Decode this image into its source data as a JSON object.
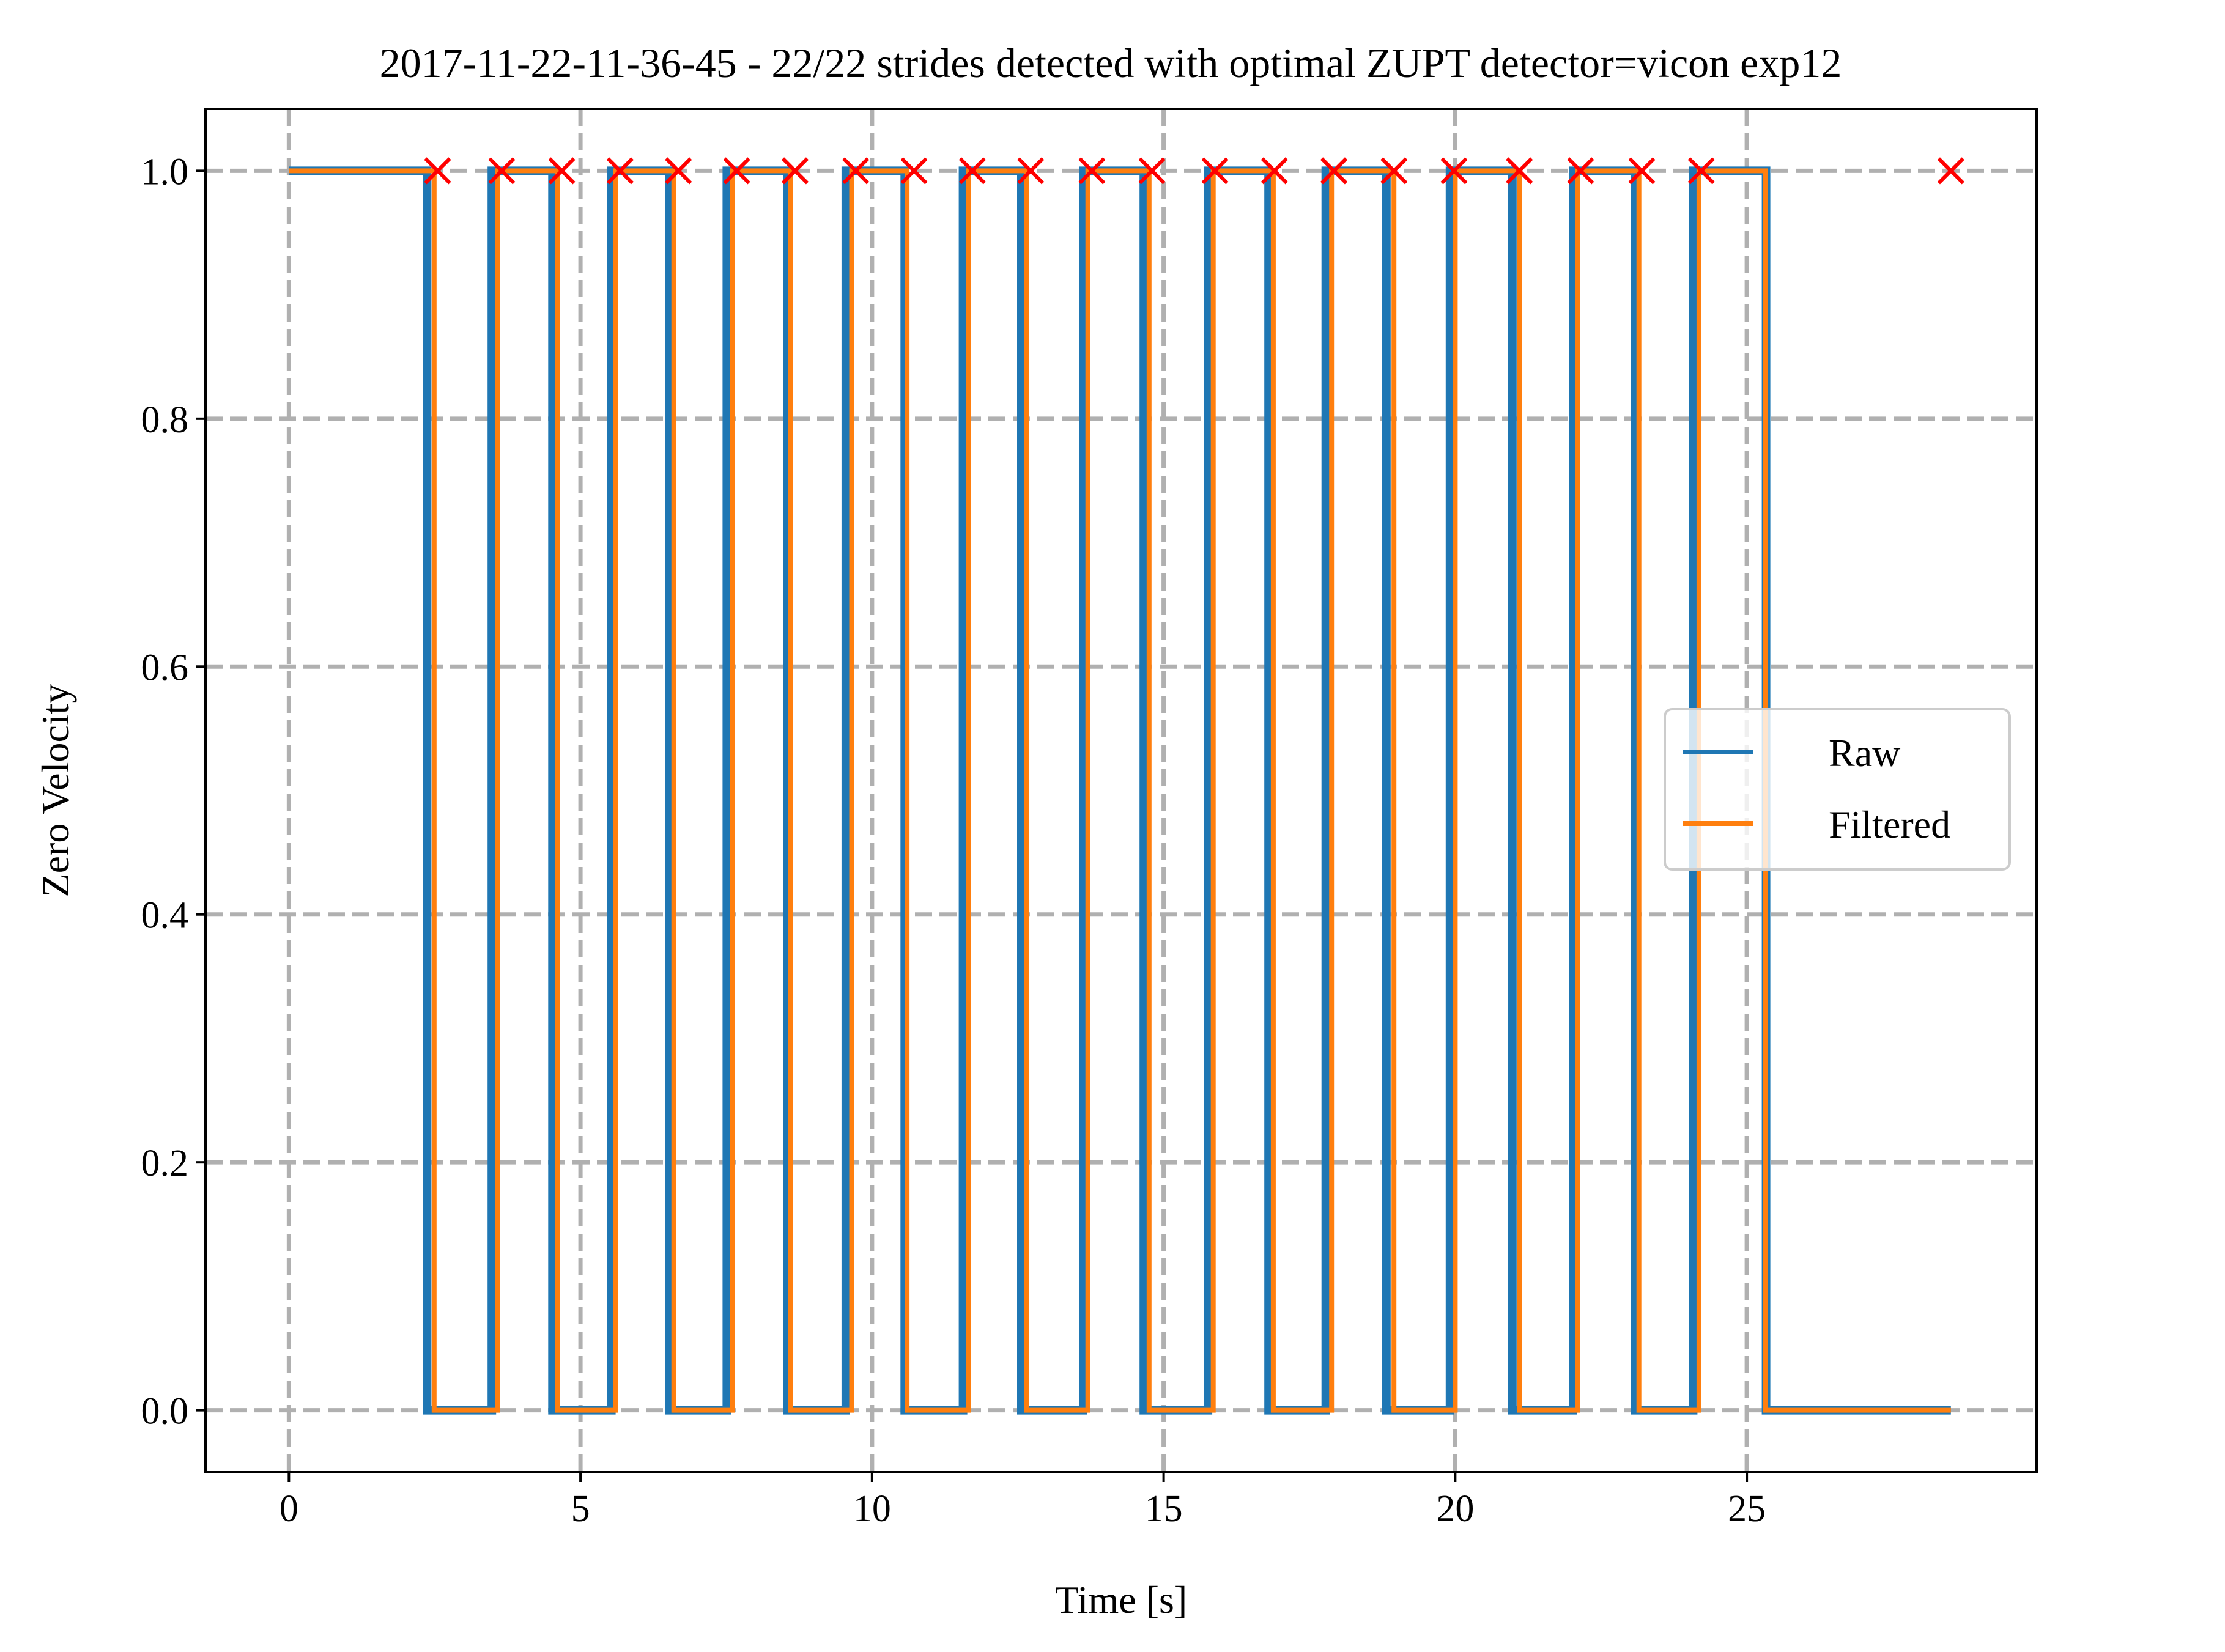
{
  "chart_data": {
    "type": "line",
    "title": "2017-11-22-11-36-45 - 22/22 strides detected with optimal ZUPT detector=vicon exp12",
    "xlabel": "Time [s]",
    "ylabel": "Zero Velocity",
    "xlim": [
      -1.43,
      29.97
    ],
    "ylim": [
      -0.05,
      1.05
    ],
    "xticks": [
      0,
      5,
      10,
      15,
      20,
      25
    ],
    "xtick_labels": [
      "0",
      "5",
      "10",
      "15",
      "20",
      "25"
    ],
    "yticks": [
      0.0,
      0.2,
      0.4,
      0.6,
      0.8,
      1.0
    ],
    "ytick_labels": [
      "0.0",
      "0.2",
      "0.4",
      "0.6",
      "0.8",
      "1.0"
    ],
    "grid": true,
    "legend_position": "center-right",
    "series": [
      {
        "name": "Raw",
        "color": "#1f77b4",
        "x": [
          0,
          2.37,
          2.37,
          3.48,
          3.48,
          4.52,
          4.52,
          5.53,
          5.53,
          6.52,
          6.52,
          7.51,
          7.51,
          8.55,
          8.55,
          9.55,
          9.55,
          10.56,
          10.56,
          11.56,
          11.56,
          12.56,
          12.56,
          13.62,
          13.62,
          14.66,
          14.66,
          15.76,
          15.76,
          16.8,
          16.8,
          17.78,
          17.78,
          18.82,
          18.82,
          19.91,
          19.91,
          20.98,
          20.98,
          22.02,
          22.02,
          23.08,
          23.08,
          24.08,
          24.08,
          25.33,
          25.33,
          28.5
        ],
        "y": [
          1,
          1,
          0,
          0,
          1,
          1,
          0,
          0,
          1,
          1,
          0,
          0,
          1,
          1,
          0,
          0,
          1,
          1,
          0,
          0,
          1,
          1,
          0,
          0,
          1,
          1,
          0,
          0,
          1,
          1,
          0,
          0,
          1,
          1,
          0,
          0,
          1,
          1,
          0,
          0,
          1,
          1,
          0,
          0,
          1,
          1,
          0,
          0
        ]
      },
      {
        "name": "Filtered",
        "color": "#ff7f0e",
        "x": [
          0,
          2.49,
          2.49,
          3.58,
          3.58,
          4.6,
          4.6,
          5.6,
          5.6,
          6.6,
          6.6,
          7.6,
          7.6,
          8.6,
          8.6,
          9.65,
          9.65,
          10.6,
          10.6,
          11.65,
          11.65,
          12.65,
          12.65,
          13.7,
          13.7,
          14.75,
          14.75,
          15.85,
          15.85,
          16.88,
          16.88,
          17.88,
          17.88,
          18.95,
          18.95,
          20.0,
          20.0,
          21.1,
          21.1,
          22.1,
          22.1,
          23.15,
          23.15,
          24.18,
          24.18,
          25.32,
          25.32,
          28.5
        ],
        "y": [
          1,
          1,
          0,
          0,
          1,
          1,
          0,
          0,
          1,
          1,
          0,
          0,
          1,
          1,
          0,
          0,
          1,
          1,
          0,
          0,
          1,
          1,
          0,
          0,
          1,
          1,
          0,
          0,
          1,
          1,
          0,
          0,
          1,
          1,
          0,
          0,
          1,
          1,
          0,
          0,
          1,
          1,
          0,
          0,
          1,
          1,
          0,
          0
        ]
      }
    ],
    "stride_markers": {
      "color": "#ff0000",
      "x": [
        2.55,
        3.65,
        4.68,
        5.68,
        6.68,
        7.68,
        8.68,
        9.72,
        10.72,
        11.72,
        12.72,
        13.77,
        14.8,
        15.88,
        16.9,
        17.92,
        18.95,
        19.98,
        21.1,
        22.15,
        23.2,
        24.22,
        28.5
      ],
      "y": 1.0
    }
  }
}
